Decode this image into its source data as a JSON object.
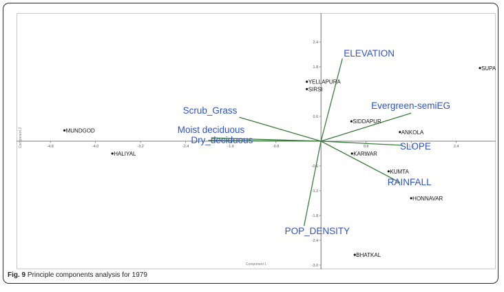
{
  "caption": {
    "fig_label": "Fig. 9",
    "text": " Principle components analysis for 1979"
  },
  "chart_data": {
    "type": "scatter",
    "subtype": "biplot",
    "xlabel": "Component 1",
    "ylabel": "Component 2",
    "xlim": [
      -5.4,
      3.1
    ],
    "ylim": [
      -3.1,
      3.1
    ],
    "x_ticks": [
      -4.8,
      -4.0,
      -3.2,
      -2.4,
      -1.6,
      -0.8,
      0.8,
      1.6,
      2.4
    ],
    "y_ticks": [
      2.4,
      1.8,
      0.6,
      -0.6,
      -1.2,
      -1.8,
      -2.4,
      -3.0
    ],
    "x_tick_labels": [
      "-4.8",
      "-4.0",
      "-3.2",
      "-2.4",
      "-1.6",
      "-0.8",
      "0.8",
      "1.6",
      "2.4"
    ],
    "y_tick_labels": [
      "2.4",
      "1.8",
      "0.6",
      "-0.6",
      "-1.2",
      "-1.8",
      "-2.4",
      "-3.0"
    ],
    "grid": false,
    "colors": {
      "loadings": "#3c7a3c",
      "variable_labels": "#2f52c8",
      "points": "#111111"
    },
    "observations": [
      {
        "label": "SUPA",
        "x": 2.82,
        "y": 1.77
      },
      {
        "label": "YELLAPURA",
        "x": -0.25,
        "y": 1.44
      },
      {
        "label": "SIRSI",
        "x": -0.25,
        "y": 1.26
      },
      {
        "label": "SIDDAPUR",
        "x": 0.54,
        "y": 0.48
      },
      {
        "label": "ANKOLA",
        "x": 1.4,
        "y": 0.22
      },
      {
        "label": "MUNDGOD",
        "x": -4.55,
        "y": 0.26
      },
      {
        "label": "HALIYAL",
        "x": -3.7,
        "y": -0.3
      },
      {
        "label": "KARWAR",
        "x": 0.55,
        "y": -0.3
      },
      {
        "label": "KUMTA",
        "x": 1.2,
        "y": -0.73
      },
      {
        "label": "HONNAVAR",
        "x": 1.6,
        "y": -1.38
      },
      {
        "label": "BHATKAL",
        "x": 0.6,
        "y": -2.75
      }
    ],
    "loadings": [
      {
        "name": "ELEVATION",
        "x": 0.38,
        "y": 2.0
      },
      {
        "name": "Evergreen-semiEG",
        "x": 1.6,
        "y": 0.68
      },
      {
        "name": "Scrub_Grass",
        "x": -1.45,
        "y": 0.58
      },
      {
        "name": "Moist deciduous",
        "x": -1.95,
        "y": 0.08
      },
      {
        "name": "Dry_deciduous",
        "x": -2.0,
        "y": 0.02
      },
      {
        "name": "SLOPE",
        "x": 1.45,
        "y": -0.1
      },
      {
        "name": "RAINFALL",
        "x": 1.4,
        "y": -1.0
      },
      {
        "name": "POP_DENSITY",
        "x": -0.3,
        "y": -2.05
      }
    ]
  }
}
